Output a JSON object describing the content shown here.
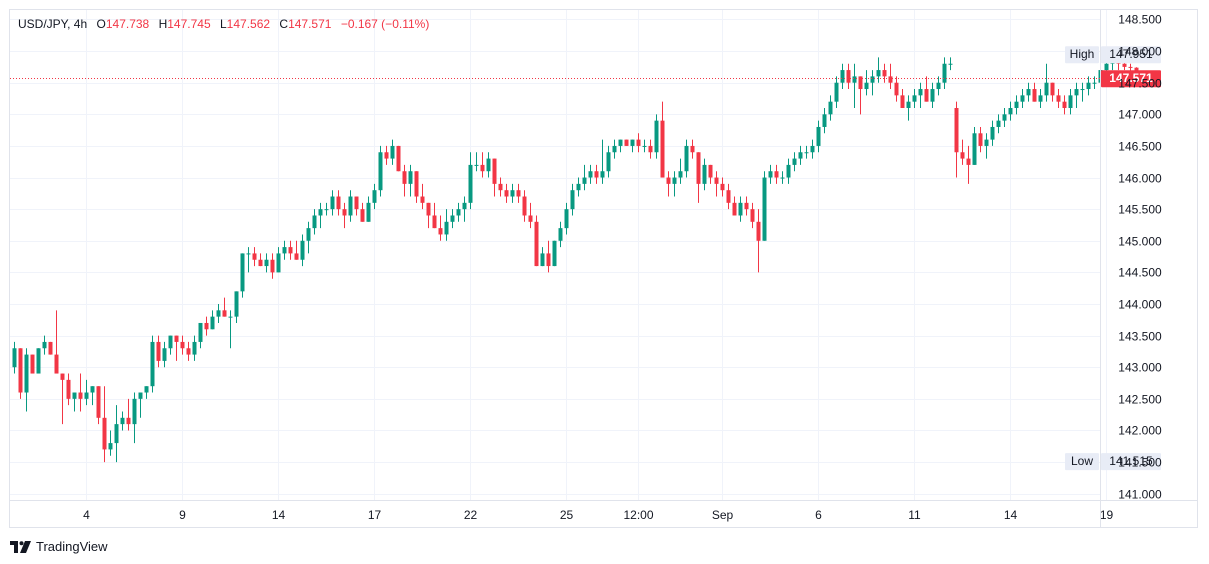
{
  "symbol": "USD/JPY, 4h",
  "ohlc": {
    "o_label": "O",
    "o_value": "147.738",
    "h_label": "H",
    "h_value": "147.745",
    "l_label": "L",
    "l_value": "147.562",
    "c_label": "C",
    "c_value": "147.571",
    "change": "−0.167 (−0.11%)"
  },
  "brand": "TradingView",
  "colors": {
    "up": "#089981",
    "down": "#f23645",
    "grid": "#f0f3fa",
    "price_line": "#f23645"
  },
  "badges": {
    "high_label": "High",
    "high_value": "147.951",
    "low_label": "Low",
    "low_value": "141.515",
    "last_value": "147.571"
  },
  "chart_data": {
    "type": "candlestick",
    "interval": "4h",
    "y_ticks": [
      "148.500",
      "148.000",
      "147.500",
      "147.000",
      "146.500",
      "146.000",
      "145.500",
      "145.000",
      "144.500",
      "144.000",
      "143.500",
      "143.000",
      "142.500",
      "142.000",
      "141.500",
      "141.000"
    ],
    "y_range": [
      140.9,
      148.65
    ],
    "x_ticks": [
      {
        "label": "4",
        "bar": 12
      },
      {
        "label": "9",
        "bar": 28
      },
      {
        "label": "14",
        "bar": 44
      },
      {
        "label": "17",
        "bar": 60
      },
      {
        "label": "22",
        "bar": 76
      },
      {
        "label": "25",
        "bar": 92
      },
      {
        "label": "12:00",
        "bar": 104
      },
      {
        "label": "Sep",
        "bar": 118
      },
      {
        "label": "6",
        "bar": 134
      },
      {
        "label": "11",
        "bar": 150
      },
      {
        "label": "14",
        "bar": 166
      },
      {
        "label": "19",
        "bar": 182
      }
    ],
    "last_price": 147.571,
    "high": 147.951,
    "low": 141.515,
    "candles": [
      [
        143.0,
        143.4,
        142.9,
        143.3
      ],
      [
        143.3,
        143.3,
        142.5,
        142.6
      ],
      [
        142.6,
        143.3,
        142.3,
        143.2
      ],
      [
        143.2,
        143.2,
        142.9,
        142.9
      ],
      [
        142.9,
        143.3,
        142.9,
        143.3
      ],
      [
        143.3,
        143.5,
        143.2,
        143.4
      ],
      [
        143.4,
        143.4,
        143.2,
        143.2
      ],
      [
        143.2,
        143.9,
        142.9,
        142.9
      ],
      [
        142.9,
        142.9,
        142.1,
        142.8
      ],
      [
        142.8,
        142.9,
        142.4,
        142.5
      ],
      [
        142.5,
        142.6,
        142.3,
        142.6
      ],
      [
        142.6,
        142.9,
        142.3,
        142.5
      ],
      [
        142.5,
        142.8,
        142.4,
        142.6
      ],
      [
        142.6,
        142.7,
        142.4,
        142.7
      ],
      [
        142.7,
        142.7,
        142.1,
        142.2
      ],
      [
        142.2,
        142.7,
        141.5,
        141.7
      ],
      [
        141.7,
        142.0,
        141.6,
        141.8
      ],
      [
        141.8,
        142.4,
        141.5,
        142.1
      ],
      [
        142.1,
        142.3,
        142.0,
        142.2
      ],
      [
        142.2,
        142.5,
        142.0,
        142.1
      ],
      [
        142.1,
        142.6,
        141.8,
        142.5
      ],
      [
        142.5,
        142.6,
        142.2,
        142.6
      ],
      [
        142.6,
        142.7,
        142.5,
        142.7
      ],
      [
        142.7,
        143.5,
        142.6,
        143.4
      ],
      [
        143.4,
        143.5,
        143.0,
        143.1
      ],
      [
        143.1,
        143.4,
        143.0,
        143.3
      ],
      [
        143.3,
        143.5,
        143.2,
        143.5
      ],
      [
        143.5,
        143.5,
        143.1,
        143.4
      ],
      [
        143.4,
        143.5,
        143.2,
        143.3
      ],
      [
        143.3,
        143.4,
        143.1,
        143.2
      ],
      [
        143.2,
        143.5,
        143.1,
        143.4
      ],
      [
        143.4,
        143.7,
        143.3,
        143.7
      ],
      [
        143.7,
        143.8,
        143.5,
        143.6
      ],
      [
        143.6,
        143.9,
        143.6,
        143.8
      ],
      [
        143.8,
        144.0,
        143.7,
        143.9
      ],
      [
        143.9,
        144.1,
        143.8,
        143.8
      ],
      [
        143.8,
        143.9,
        143.3,
        143.8
      ],
      [
        143.8,
        144.2,
        143.7,
        144.2
      ],
      [
        144.2,
        144.8,
        144.1,
        144.8
      ],
      [
        144.8,
        144.9,
        144.5,
        144.8
      ],
      [
        144.8,
        144.9,
        144.6,
        144.7
      ],
      [
        144.7,
        144.8,
        144.6,
        144.6
      ],
      [
        144.6,
        144.8,
        144.5,
        144.7
      ],
      [
        144.7,
        144.8,
        144.4,
        144.5
      ],
      [
        144.5,
        144.9,
        144.5,
        144.8
      ],
      [
        144.8,
        145.0,
        144.7,
        144.9
      ],
      [
        144.9,
        145.0,
        144.7,
        144.8
      ],
      [
        144.8,
        145.0,
        144.7,
        144.7
      ],
      [
        144.7,
        145.1,
        144.6,
        145.0
      ],
      [
        145.0,
        145.3,
        144.8,
        145.2
      ],
      [
        145.2,
        145.5,
        145.1,
        145.4
      ],
      [
        145.4,
        145.6,
        145.2,
        145.5
      ],
      [
        145.5,
        145.6,
        145.4,
        145.5
      ],
      [
        145.5,
        145.8,
        145.4,
        145.7
      ],
      [
        145.7,
        145.8,
        145.4,
        145.5
      ],
      [
        145.5,
        145.6,
        145.2,
        145.4
      ],
      [
        145.4,
        145.8,
        145.3,
        145.7
      ],
      [
        145.7,
        145.7,
        145.4,
        145.5
      ],
      [
        145.5,
        145.6,
        145.3,
        145.3
      ],
      [
        145.3,
        145.7,
        145.3,
        145.6
      ],
      [
        145.6,
        145.9,
        145.5,
        145.8
      ],
      [
        145.8,
        146.5,
        145.7,
        146.4
      ],
      [
        146.4,
        146.5,
        146.2,
        146.3
      ],
      [
        146.3,
        146.6,
        146.2,
        146.5
      ],
      [
        146.5,
        146.5,
        146.1,
        146.1
      ],
      [
        146.1,
        146.2,
        145.7,
        145.9
      ],
      [
        145.9,
        146.2,
        145.7,
        146.1
      ],
      [
        146.1,
        146.1,
        145.6,
        145.7
      ],
      [
        145.7,
        145.9,
        145.5,
        145.6
      ],
      [
        145.6,
        145.6,
        145.2,
        145.4
      ],
      [
        145.4,
        145.6,
        145.2,
        145.2
      ],
      [
        145.2,
        145.4,
        145.0,
        145.1
      ],
      [
        145.1,
        145.5,
        145.0,
        145.3
      ],
      [
        145.3,
        145.5,
        145.2,
        145.4
      ],
      [
        145.4,
        145.6,
        145.3,
        145.5
      ],
      [
        145.5,
        145.7,
        145.3,
        145.6
      ],
      [
        145.6,
        146.4,
        145.5,
        146.2
      ],
      [
        146.2,
        146.4,
        146.1,
        146.2
      ],
      [
        146.2,
        146.4,
        146.0,
        146.1
      ],
      [
        146.1,
        146.4,
        146.0,
        146.3
      ],
      [
        146.3,
        146.3,
        145.7,
        145.9
      ],
      [
        145.9,
        146.0,
        145.7,
        145.8
      ],
      [
        145.8,
        145.9,
        145.6,
        145.7
      ],
      [
        145.7,
        145.9,
        145.6,
        145.8
      ],
      [
        145.8,
        145.9,
        145.6,
        145.7
      ],
      [
        145.7,
        145.8,
        145.3,
        145.4
      ],
      [
        145.4,
        145.6,
        145.2,
        145.3
      ],
      [
        145.3,
        145.4,
        144.6,
        144.6
      ],
      [
        144.6,
        144.9,
        144.6,
        144.8
      ],
      [
        144.8,
        145.0,
        144.5,
        144.6
      ],
      [
        144.6,
        145.0,
        144.6,
        145.0
      ],
      [
        145.0,
        145.3,
        144.9,
        145.2
      ],
      [
        145.2,
        145.6,
        145.1,
        145.5
      ],
      [
        145.5,
        145.9,
        145.4,
        145.8
      ],
      [
        145.8,
        146.0,
        145.7,
        145.9
      ],
      [
        145.9,
        146.2,
        145.8,
        146.0
      ],
      [
        146.0,
        146.2,
        145.9,
        146.1
      ],
      [
        146.1,
        146.2,
        145.9,
        146.0
      ],
      [
        146.0,
        146.6,
        145.9,
        146.1
      ],
      [
        146.1,
        146.5,
        146.0,
        146.4
      ],
      [
        146.4,
        146.6,
        146.3,
        146.5
      ],
      [
        146.5,
        146.6,
        146.4,
        146.6
      ],
      [
        146.6,
        146.6,
        146.5,
        146.5
      ],
      [
        146.5,
        146.6,
        146.4,
        146.6
      ],
      [
        146.6,
        146.7,
        146.4,
        146.5
      ],
      [
        146.5,
        146.6,
        146.4,
        146.5
      ],
      [
        146.5,
        146.6,
        146.3,
        146.4
      ],
      [
        146.4,
        147.0,
        146.3,
        146.9
      ],
      [
        146.9,
        147.2,
        146.0,
        146.0
      ],
      [
        146.0,
        146.1,
        145.7,
        145.9
      ],
      [
        145.9,
        146.1,
        145.7,
        146.0
      ],
      [
        146.0,
        146.3,
        145.9,
        146.1
      ],
      [
        146.1,
        146.6,
        146.0,
        146.5
      ],
      [
        146.5,
        146.6,
        146.3,
        146.4
      ],
      [
        146.4,
        146.4,
        145.6,
        145.9
      ],
      [
        145.9,
        146.3,
        145.8,
        146.2
      ],
      [
        146.2,
        146.2,
        145.9,
        146.0
      ],
      [
        146.0,
        146.1,
        145.7,
        145.9
      ],
      [
        145.9,
        146.0,
        145.7,
        145.8
      ],
      [
        145.8,
        145.9,
        145.5,
        145.6
      ],
      [
        145.6,
        145.7,
        145.4,
        145.4
      ],
      [
        145.4,
        145.7,
        145.3,
        145.6
      ],
      [
        145.6,
        145.7,
        145.4,
        145.5
      ],
      [
        145.5,
        145.6,
        145.2,
        145.3
      ],
      [
        145.3,
        145.5,
        144.5,
        145.0
      ],
      [
        145.0,
        146.1,
        145.0,
        146.0
      ],
      [
        146.0,
        146.2,
        145.9,
        146.1
      ],
      [
        146.1,
        146.2,
        145.9,
        146.0
      ],
      [
        146.0,
        146.1,
        145.9,
        146.0
      ],
      [
        146.0,
        146.3,
        145.9,
        146.2
      ],
      [
        146.2,
        146.4,
        146.1,
        146.3
      ],
      [
        146.3,
        146.5,
        146.2,
        146.4
      ],
      [
        146.4,
        146.5,
        146.3,
        146.4
      ],
      [
        146.4,
        146.6,
        146.3,
        146.5
      ],
      [
        146.5,
        146.9,
        146.4,
        146.8
      ],
      [
        146.8,
        147.1,
        146.7,
        147.0
      ],
      [
        147.0,
        147.3,
        146.9,
        147.2
      ],
      [
        147.2,
        147.6,
        147.1,
        147.5
      ],
      [
        147.5,
        147.8,
        147.4,
        147.7
      ],
      [
        147.7,
        147.8,
        147.4,
        147.5
      ],
      [
        147.5,
        147.8,
        147.1,
        147.6
      ],
      [
        147.6,
        147.6,
        147.0,
        147.4
      ],
      [
        147.4,
        147.7,
        147.3,
        147.5
      ],
      [
        147.5,
        147.7,
        147.3,
        147.6
      ],
      [
        147.6,
        147.9,
        147.5,
        147.7
      ],
      [
        147.7,
        147.8,
        147.5,
        147.6
      ],
      [
        147.6,
        147.8,
        147.4,
        147.5
      ],
      [
        147.5,
        147.6,
        147.2,
        147.3
      ],
      [
        147.3,
        147.4,
        147.1,
        147.1
      ],
      [
        147.1,
        147.3,
        146.9,
        147.2
      ],
      [
        147.2,
        147.4,
        147.1,
        147.3
      ],
      [
        147.3,
        147.5,
        147.1,
        147.4
      ],
      [
        147.4,
        147.6,
        147.2,
        147.2
      ],
      [
        147.2,
        147.5,
        147.1,
        147.4
      ],
      [
        147.4,
        147.6,
        147.3,
        147.5
      ],
      [
        147.5,
        147.9,
        147.4,
        147.8
      ],
      [
        147.8,
        147.9,
        147.7,
        147.8
      ],
      [
        147.1,
        147.2,
        146.0,
        146.4
      ],
      [
        146.4,
        146.6,
        146.2,
        146.3
      ],
      [
        146.3,
        146.5,
        145.9,
        146.2
      ],
      [
        146.2,
        146.8,
        146.2,
        146.7
      ],
      [
        146.7,
        146.8,
        146.4,
        146.5
      ],
      [
        146.5,
        146.7,
        146.3,
        146.6
      ],
      [
        146.6,
        146.9,
        146.5,
        146.8
      ],
      [
        146.8,
        147.0,
        146.7,
        146.9
      ],
      [
        146.9,
        147.1,
        146.8,
        147.0
      ],
      [
        147.0,
        147.2,
        146.9,
        147.1
      ],
      [
        147.1,
        147.3,
        147.0,
        147.2
      ],
      [
        147.2,
        147.4,
        147.1,
        147.3
      ],
      [
        147.3,
        147.5,
        147.2,
        147.4
      ],
      [
        147.4,
        147.5,
        147.2,
        147.2
      ],
      [
        147.2,
        147.4,
        147.1,
        147.3
      ],
      [
        147.3,
        147.8,
        147.2,
        147.5
      ],
      [
        147.5,
        147.5,
        147.2,
        147.3
      ],
      [
        147.3,
        147.4,
        147.1,
        147.2
      ],
      [
        147.2,
        147.3,
        147.0,
        147.1
      ],
      [
        147.1,
        147.4,
        147.0,
        147.3
      ],
      [
        147.3,
        147.5,
        147.1,
        147.4
      ],
      [
        147.4,
        147.5,
        147.2,
        147.4
      ],
      [
        147.4,
        147.6,
        147.3,
        147.5
      ],
      [
        147.5,
        147.6,
        147.4,
        147.5
      ],
      [
        147.5,
        147.8,
        147.4,
        147.7
      ],
      [
        147.7,
        147.9,
        147.6,
        147.8
      ],
      [
        147.8,
        147.95,
        147.7,
        147.85
      ],
      [
        147.85,
        147.9,
        147.7,
        147.8
      ],
      [
        147.8,
        147.85,
        147.7,
        147.75
      ],
      [
        147.75,
        147.8,
        147.6,
        147.738
      ],
      [
        147.738,
        147.745,
        147.562,
        147.571
      ]
    ]
  }
}
